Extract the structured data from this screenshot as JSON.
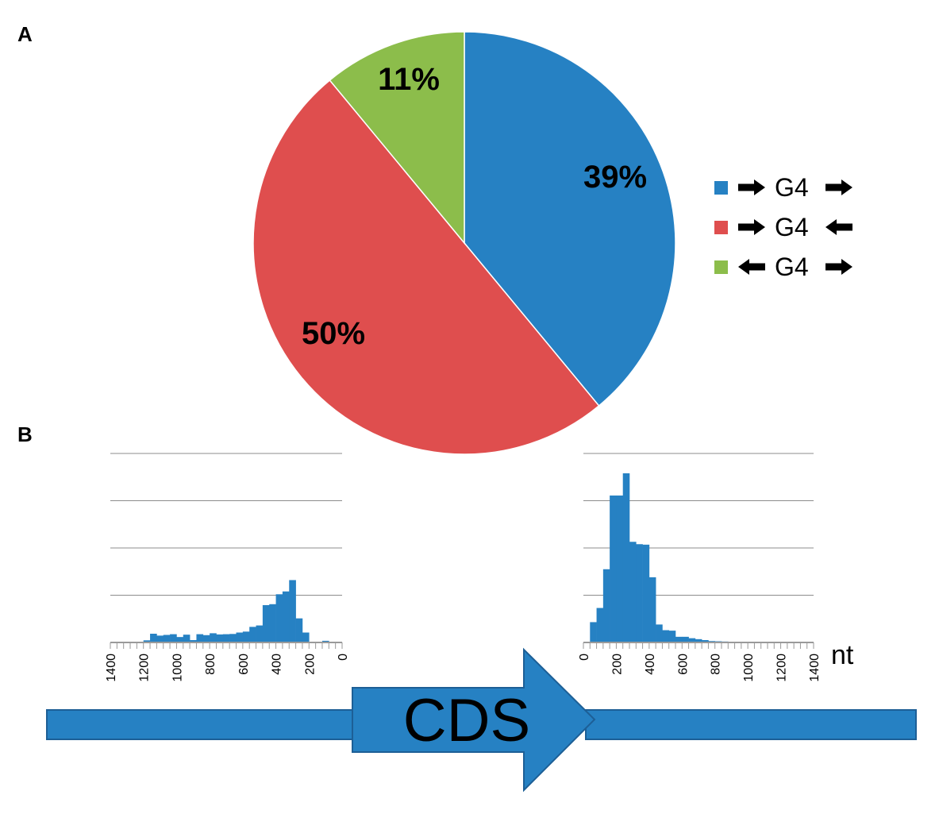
{
  "panel_labels": {
    "a": "A",
    "b": "B"
  },
  "chart_data": [
    {
      "type": "pie",
      "panel": "A",
      "slices": [
        {
          "label": "39%",
          "value": 39,
          "color": "#2681c3"
        },
        {
          "label": "50%",
          "value": 50,
          "color": "#df4e4e"
        },
        {
          "label": "11%",
          "value": 11,
          "color": "#8cbd4b"
        }
      ],
      "legend": [
        {
          "text": "G4",
          "left_arrow": "right",
          "right_arrow": "right",
          "color": "#2681c3"
        },
        {
          "text": "G4",
          "left_arrow": "right",
          "right_arrow": "left",
          "color": "#df4e4e"
        },
        {
          "text": "G4",
          "left_arrow": "left",
          "right_arrow": "right",
          "color": "#8cbd4b"
        }
      ],
      "legend_position": "right"
    },
    {
      "type": "bar",
      "panel": "B-left",
      "x_direction": "reversed",
      "bin_width": 40,
      "x": [
        0,
        40,
        80,
        120,
        160,
        200,
        240,
        280,
        320,
        360,
        400,
        440,
        480,
        520,
        560,
        600,
        640,
        680,
        720,
        760,
        800,
        840,
        880,
        920,
        960,
        1000,
        1040,
        1080,
        1120,
        1160,
        1200,
        1240,
        1280,
        1320,
        1360
      ],
      "values": [
        0,
        0,
        35,
        0,
        0,
        210,
        510,
        1320,
        1080,
        1020,
        810,
        790,
        360,
        330,
        230,
        210,
        180,
        175,
        170,
        195,
        155,
        175,
        50,
        165,
        115,
        175,
        160,
        145,
        185,
        45,
        0,
        0,
        0,
        0,
        0
      ],
      "xticks": [
        "1400",
        "1200",
        "1000",
        "800",
        "600",
        "400",
        "200",
        "0"
      ],
      "ylim": [
        0,
        4000
      ],
      "grid": true,
      "color": "#2681c3"
    },
    {
      "type": "bar",
      "panel": "B-right",
      "bin_width": 40,
      "x": [
        0,
        40,
        80,
        120,
        160,
        200,
        240,
        280,
        320,
        360,
        400,
        440,
        480,
        520,
        560,
        600,
        640,
        680,
        720,
        760,
        800,
        840,
        880,
        920,
        960,
        1000,
        1040,
        1080,
        1120,
        1160,
        1200,
        1240,
        1280,
        1320,
        1360
      ],
      "values": [
        0,
        430,
        730,
        1550,
        3110,
        3110,
        3580,
        2130,
        2080,
        2070,
        1380,
        380,
        260,
        250,
        120,
        120,
        90,
        70,
        50,
        30,
        25,
        20,
        15,
        15,
        10,
        10,
        5,
        5,
        0,
        0,
        0,
        0,
        0,
        0,
        0
      ],
      "xticks": [
        "0",
        "200",
        "400",
        "600",
        "800",
        "1000",
        "1200",
        "1400"
      ],
      "xunit": "nt",
      "ylim": [
        0,
        4000
      ],
      "grid": true,
      "color": "#2681c3"
    }
  ],
  "gene": {
    "label": "CDS",
    "color": "#2681c3"
  }
}
